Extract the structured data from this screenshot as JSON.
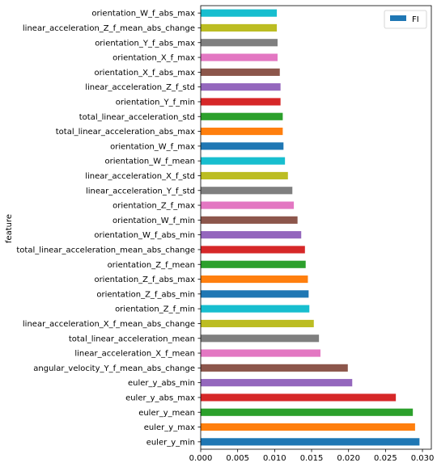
{
  "chart_data": {
    "type": "bar",
    "orientation": "horizontal",
    "ylabel": "feature",
    "xlabel": "",
    "xlim": [
      0,
      0.0312
    ],
    "xticks": [
      0.0,
      0.005,
      0.01,
      0.015,
      0.02,
      0.025,
      0.03
    ],
    "xtick_labels": [
      "0.000",
      "0.005",
      "0.010",
      "0.015",
      "0.020",
      "0.025",
      "0.030"
    ],
    "legend": {
      "position": "top-right",
      "label": "FI",
      "color": "#1f77b4"
    },
    "categories": [
      "euler_y_min",
      "euler_y_max",
      "euler_y_mean",
      "euler_y_abs_max",
      "euler_y_abs_min",
      "angular_velocity_Y_f_mean_abs_change",
      "linear_acceleration_X_f_mean",
      "total_linear_acceleration_mean",
      "linear_acceleration_X_f_mean_abs_change",
      "orientation_Z_f_min",
      "orientation_Z_f_abs_min",
      "orientation_Z_f_abs_max",
      "orientation_Z_f_mean",
      "total_linear_acceleration_mean_abs_change",
      "orientation_W_f_abs_min",
      "orientation_W_f_min",
      "orientation_Z_f_max",
      "linear_acceleration_Y_f_std",
      "linear_acceleration_X_f_std",
      "orientation_W_f_mean",
      "orientation_W_f_max",
      "total_linear_acceleration_abs_max",
      "total_linear_acceleration_std",
      "orientation_Y_f_min",
      "linear_acceleration_Z_f_std",
      "orientation_X_f_abs_max",
      "orientation_X_f_max",
      "orientation_Y_f_abs_max",
      "linear_acceleration_Z_f_mean_abs_change",
      "orientation_W_f_abs_max"
    ],
    "values": [
      0.0296,
      0.029,
      0.0287,
      0.0264,
      0.0205,
      0.0199,
      0.0162,
      0.016,
      0.0153,
      0.0147,
      0.0146,
      0.0145,
      0.0142,
      0.0141,
      0.0136,
      0.0131,
      0.0126,
      0.0124,
      0.0118,
      0.0114,
      0.0112,
      0.0111,
      0.0111,
      0.0108,
      0.0108,
      0.0107,
      0.0104,
      0.0104,
      0.0103,
      0.0103
    ],
    "bar_colors": [
      "#1f77b4",
      "#ff7f0e",
      "#2ca02c",
      "#d62728",
      "#9467bd",
      "#8c564b",
      "#e377c2",
      "#7f7f7f",
      "#bcbd22",
      "#17becf"
    ]
  }
}
